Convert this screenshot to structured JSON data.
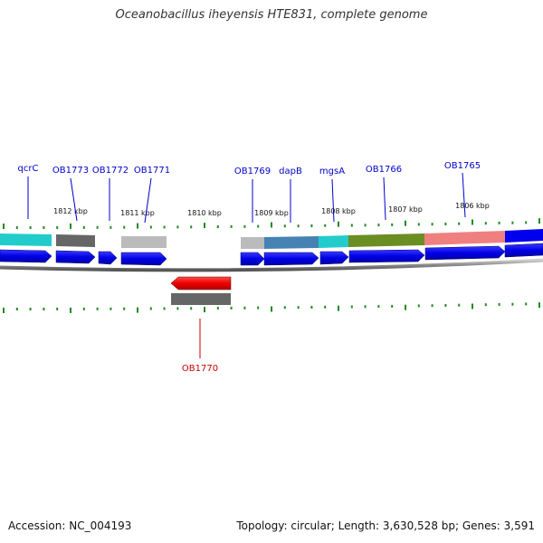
{
  "title": "Oceanobacillus iheyensis HTE831, complete genome",
  "footer": {
    "accession": "Accession: NC_004193",
    "summary": "Topology: circular; Length: 3,630,528 bp; Genes: 3,591"
  },
  "scale_labels": [
    "1812 kbp",
    "1811 kbp",
    "1810 kbp",
    "1809 kbp",
    "1808 kbp",
    "1807 kbp",
    "1806 kbp"
  ],
  "forward_genes": [
    {
      "name": "qcrC",
      "label_color": "#0000cc"
    },
    {
      "name": "OB1773",
      "label_color": "#0000cc"
    },
    {
      "name": "OB1772",
      "label_color": "#0000cc"
    },
    {
      "name": "OB1771",
      "label_color": "#0000cc"
    },
    {
      "name": "OB1769",
      "label_color": "#0000cc"
    },
    {
      "name": "dapB",
      "label_color": "#0000cc"
    },
    {
      "name": "mgsA",
      "label_color": "#0000cc"
    },
    {
      "name": "OB1766",
      "label_color": "#0000cc"
    },
    {
      "name": "OB1765",
      "label_color": "#0000cc"
    }
  ],
  "reverse_genes": [
    {
      "name": "OB1770",
      "label_color": "#cc0000"
    }
  ],
  "colors": {
    "forward_strand": "#0000ee",
    "reverse_strand": "#ee0000",
    "backbone": "#888888",
    "tick": "#228b22",
    "cog_cyan": "#22cccc",
    "cog_darkgray": "#666666",
    "cog_lightgray": "#bbbbbb",
    "cog_steelblue": "#4682b4",
    "cog_olive": "#6b8e23",
    "cog_salmon": "#f08080"
  }
}
